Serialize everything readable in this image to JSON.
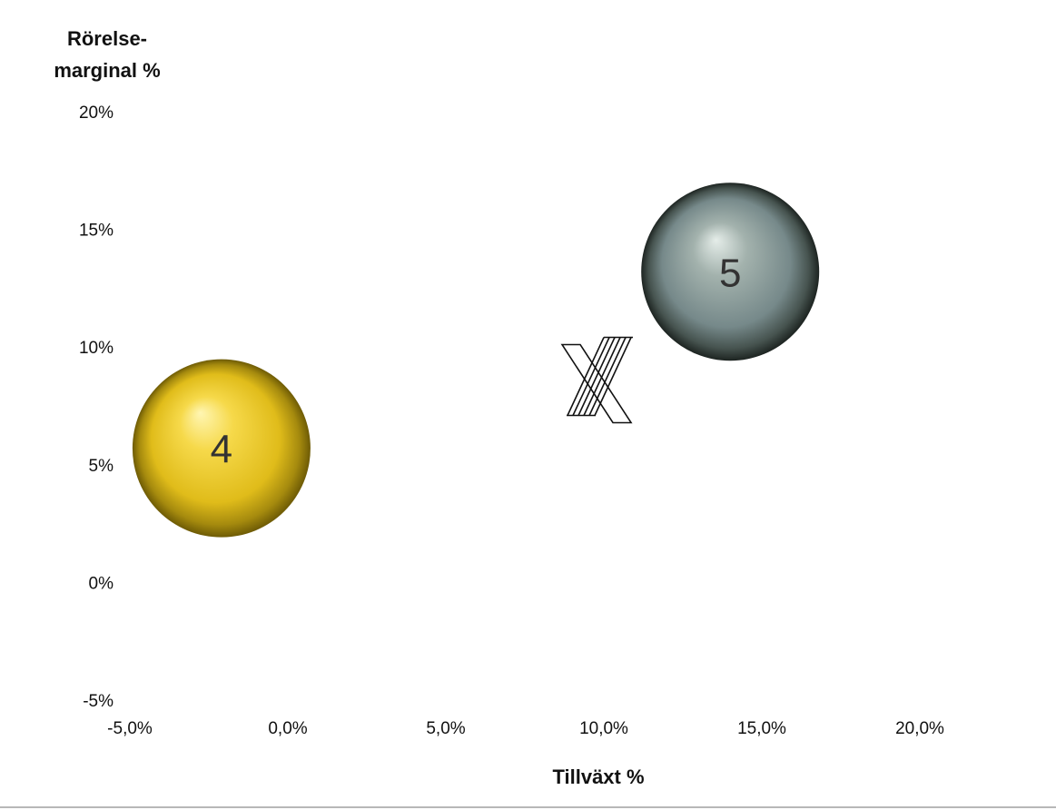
{
  "chart_data": {
    "type": "scatter",
    "ylabel_lines": [
      "Rörelse-",
      "marginal %"
    ],
    "xlabel": "Tillväxt %",
    "xlim": [
      -5.0,
      20.0
    ],
    "ylim": [
      -5,
      20
    ],
    "x_ticks": [
      -5.0,
      0.0,
      5.0,
      10.0,
      15.0,
      20.0
    ],
    "x_tick_labels": [
      "-5,0%",
      "0,0%",
      "5,0%",
      "10,0%",
      "15,0%",
      "20,0%"
    ],
    "y_ticks": [
      20,
      15,
      10,
      5,
      0,
      -5
    ],
    "y_tick_labels": [
      "20%",
      "15%",
      "10%",
      "5%",
      "0%",
      "-5%"
    ],
    "grid": false,
    "points": [
      {
        "label": "4",
        "x": -2.1,
        "y": 5.7,
        "color": "#f0cc22"
      },
      {
        "label": "5",
        "x": 14.0,
        "y": 13.2,
        "color": "#7f9590"
      }
    ],
    "marker": {
      "icon": "stylized-x-logo-icon",
      "x": 9.8,
      "y": 8.6
    }
  }
}
